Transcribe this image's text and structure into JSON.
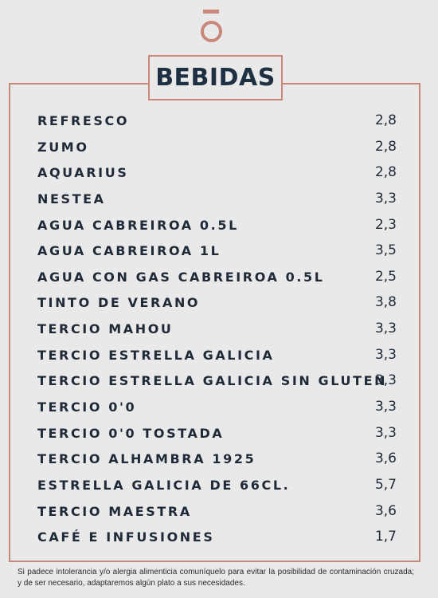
{
  "title": "BEBIDAS",
  "logo": {
    "icon": "o-macron-logo-icon",
    "color": "#c9877a"
  },
  "colors": {
    "accent": "#c9877a",
    "text": "#1f2a38",
    "background": "#e9e9e9"
  },
  "items": [
    {
      "name": "REFRESCO",
      "price": "2,8"
    },
    {
      "name": "ZUMO",
      "price": "2,8"
    },
    {
      "name": "AQUARIUS",
      "price": "2,8"
    },
    {
      "name": "NESTEA",
      "price": "3,3"
    },
    {
      "name": "AGUA CABREIROA 0.5L",
      "price": "2,3"
    },
    {
      "name": "AGUA CABREIROA 1L",
      "price": "3,5"
    },
    {
      "name": "AGUA CON GAS CABREIROA 0.5L",
      "price": "2,5"
    },
    {
      "name": "TINTO DE VERANO",
      "price": "3,8"
    },
    {
      "name": "TERCIO MAHOU",
      "price": "3,3"
    },
    {
      "name": "TERCIO ESTRELLA GALICIA",
      "price": "3,3"
    },
    {
      "name": "TERCIO ESTRELLA GALICIA SIN GLUTEN",
      "price": "3,3"
    },
    {
      "name": "TERCIO 0'0",
      "price": "3,3"
    },
    {
      "name": "TERCIO 0'0 TOSTADA",
      "price": "3,3"
    },
    {
      "name": "TERCIO ALHAMBRA 1925",
      "price": "3,6"
    },
    {
      "name": "ESTRELLA GALICIA DE 66CL.",
      "price": "5,7"
    },
    {
      "name": "TERCIO MAESTRA",
      "price": "3,6"
    },
    {
      "name": "CAFÉ E INFUSIONES",
      "price": "1,7"
    }
  ],
  "footer_note": "Si padece intolerancia y/o alergia alimenticia comuníquelo para evitar la posibilidad de contaminación cruzada; y de ser necesario, adaptaremos algún plato a sus necesidades."
}
